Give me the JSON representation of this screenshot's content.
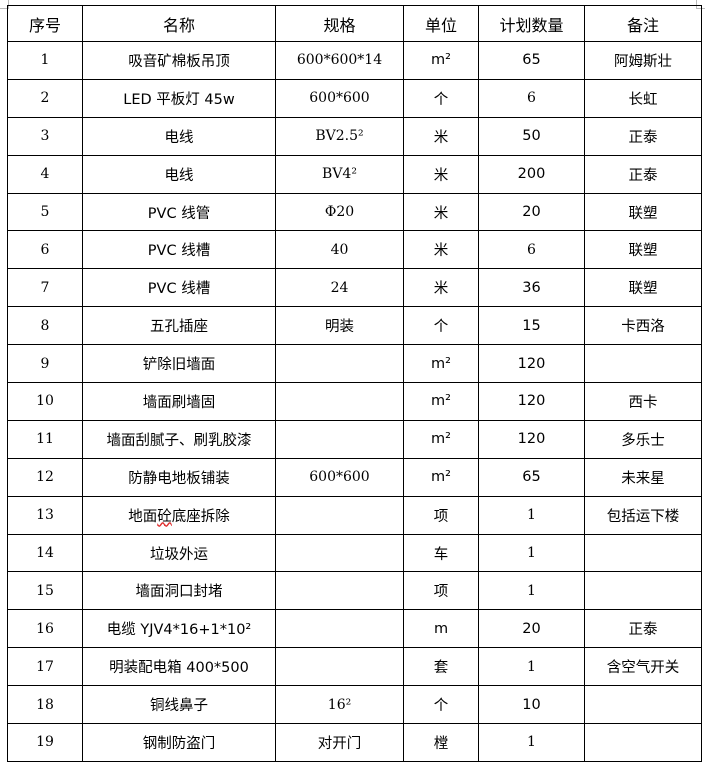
{
  "table": {
    "headers": [
      "序号",
      "名称",
      "规格",
      "单位",
      "计划数量",
      "备注"
    ],
    "rows": [
      [
        "1",
        "吸音矿棉板吊顶",
        "600*600*14",
        "m²",
        "65",
        "阿姆斯壮"
      ],
      [
        "2",
        "LED 平板灯 45w",
        "600*600",
        "个",
        "6",
        "长虹"
      ],
      [
        "3",
        "电线",
        "BV2.5²",
        "米",
        "50",
        "正泰"
      ],
      [
        "4",
        "电线",
        "BV4²",
        "米",
        "200",
        "正泰"
      ],
      [
        "5",
        "PVC 线管",
        "Φ20",
        "米",
        "20",
        "联塑"
      ],
      [
        "6",
        "PVC 线槽",
        "40",
        "米",
        "6",
        "联塑"
      ],
      [
        "7",
        "PVC 线槽",
        "24",
        "米",
        "36",
        "联塑"
      ],
      [
        "8",
        "五孔插座",
        "明装",
        "个",
        "15",
        "卡西洛"
      ],
      [
        "9",
        "铲除旧墙面",
        "",
        "m²",
        "120",
        ""
      ],
      [
        "10",
        "墙面刷墙固",
        "",
        "m²",
        "120",
        "西卡"
      ],
      [
        "11",
        "墙面刮腻子、刷乳胶漆",
        "",
        "m²",
        "120",
        "多乐士"
      ],
      [
        "12",
        "防静电地板铺装",
        "600*600",
        "m²",
        "65",
        "未来星"
      ],
      [
        "13",
        "地面砼底座拆除",
        "",
        "项",
        "1",
        "包括运下楼"
      ],
      [
        "14",
        "垃圾外运",
        "",
        "车",
        "1",
        ""
      ],
      [
        "15",
        "墙面洞口封堵",
        "",
        "项",
        "1",
        ""
      ],
      [
        "16",
        "电缆 YJV4*16+1*10²",
        "",
        "m",
        "20",
        "正泰"
      ],
      [
        "17",
        "明装配电箱 400*500",
        "",
        "套",
        "1",
        "含空气开关"
      ],
      [
        "18",
        "铜线鼻子",
        "16²",
        "个",
        "10",
        ""
      ],
      [
        "19",
        "钢制防盗门",
        "对开门",
        "樘",
        "1",
        ""
      ]
    ]
  }
}
